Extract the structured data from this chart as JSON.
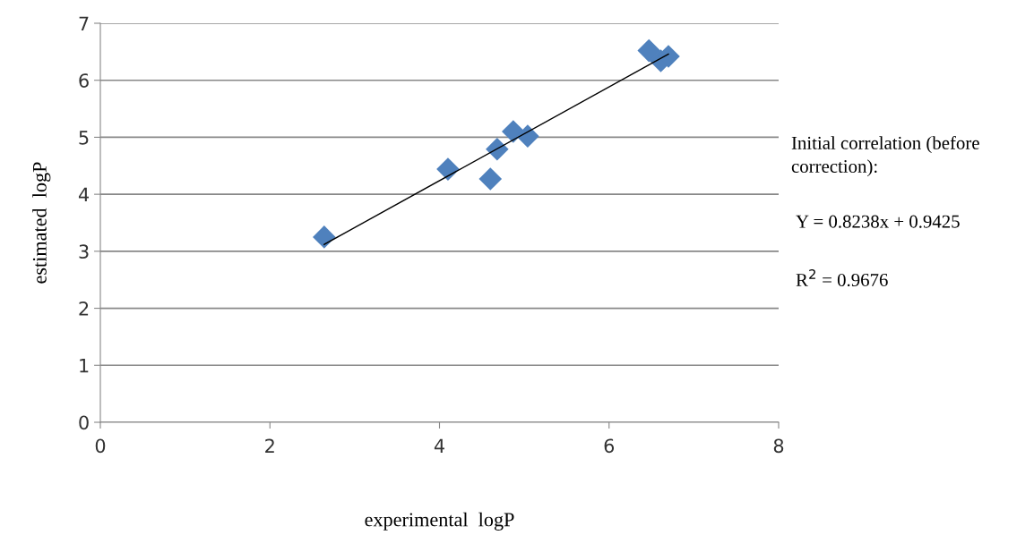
{
  "chart_data": {
    "type": "scatter",
    "xlabel": "experimental  logP",
    "ylabel": "estimated  logP",
    "x": [
      2.64,
      4.1,
      4.6,
      4.68,
      4.87,
      5.04,
      6.47,
      6.61,
      6.7
    ],
    "series": [
      {
        "marker": "diamond",
        "color": "#4f81bd",
        "values": [
          3.25,
          4.44,
          4.27,
          4.79,
          5.1,
          5.02,
          6.52,
          6.34,
          6.42
        ]
      },
      {
        "type": "line",
        "color": "#000000",
        "x": [
          2.64,
          6.7
        ],
        "values": [
          3.12,
          6.46
        ]
      }
    ],
    "xlim": [
      0,
      8
    ],
    "xticks": [
      0,
      2,
      4,
      6,
      8
    ],
    "ylim": [
      0,
      7
    ],
    "yticks": [
      0,
      1,
      2,
      3,
      4,
      5,
      6,
      7
    ],
    "grid": "y",
    "legend": false,
    "annotations": [
      "Initial correlation (before correction):",
      "Y = 0.8238x + 0.9425",
      "R$^{2}$ = 0.9676"
    ]
  }
}
